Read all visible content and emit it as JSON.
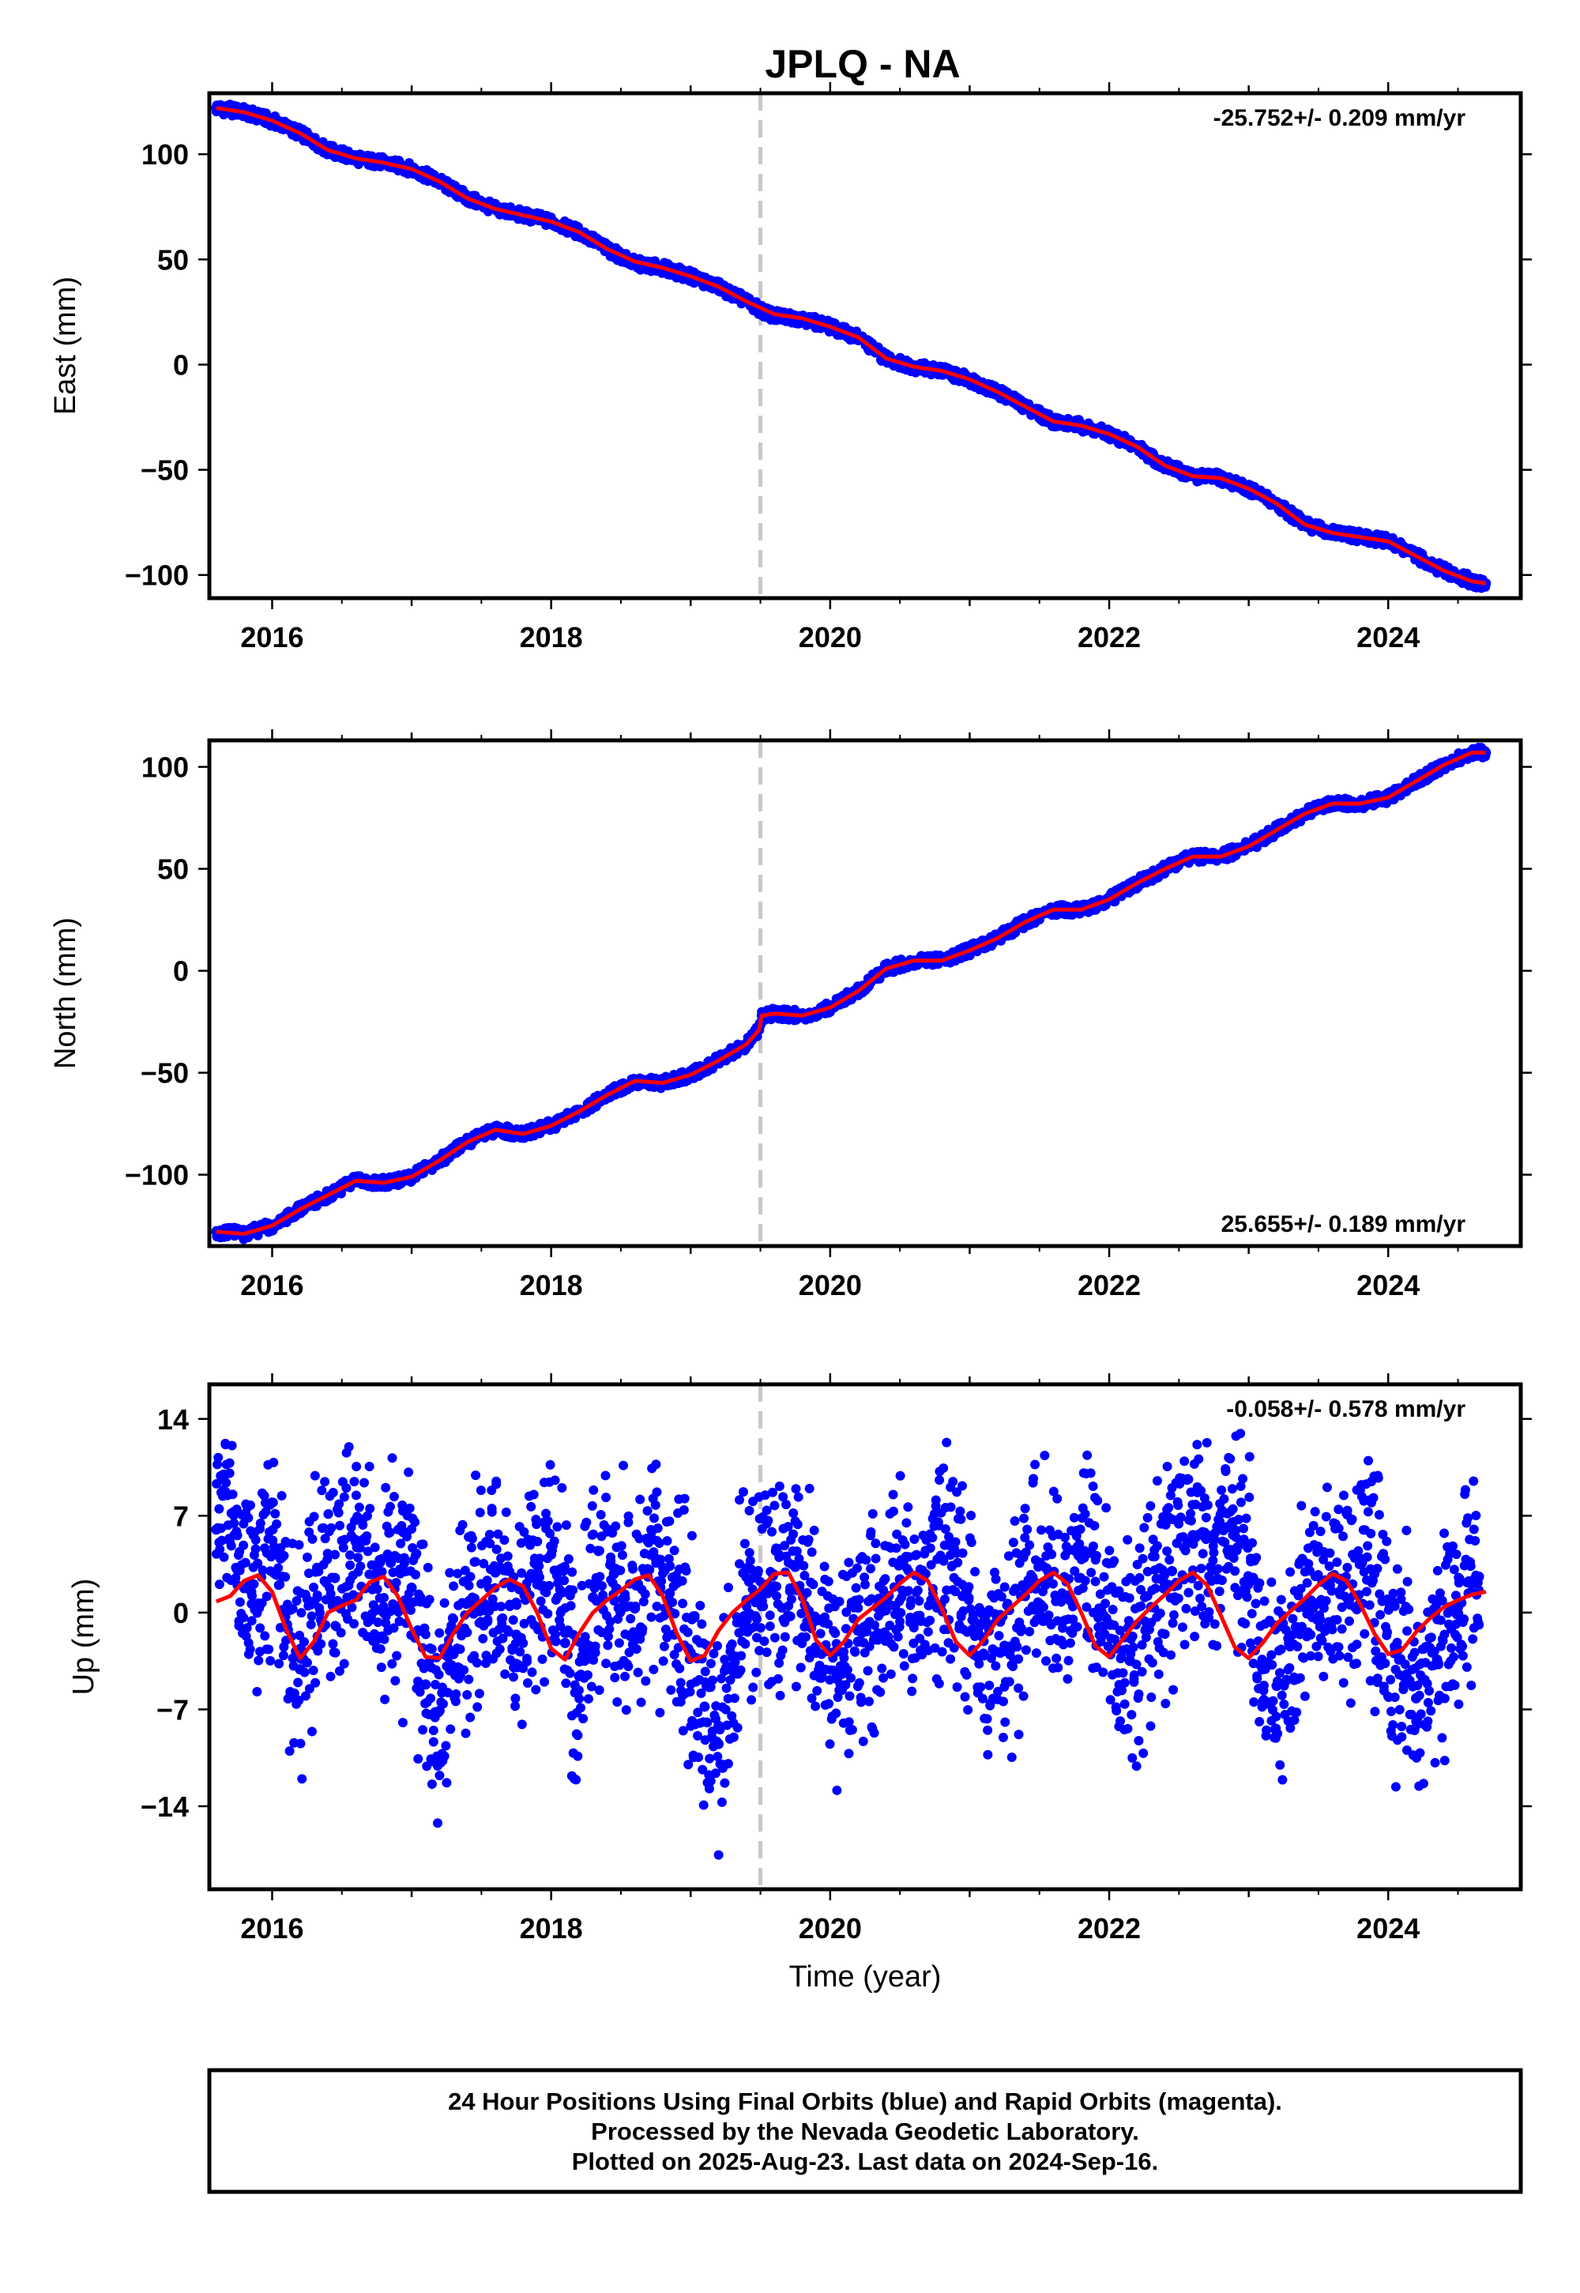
{
  "title": "JPLQ - NA",
  "footer": {
    "line1": "24 Hour Positions Using Final Orbits (blue) and Rapid Orbits (magenta).",
    "line2": "Processed by the Nevada Geodetic Laboratory.",
    "line3": "Plotted on 2025-Aug-23. Last data on 2024-Sep-16."
  },
  "colors": {
    "data": "#0000ff",
    "model": "#ff0000",
    "event_line": "#c8c8c8",
    "frame": "#000000"
  },
  "chart_data": [
    {
      "type": "scatter",
      "ylabel": "East (mm)",
      "xlabel": "",
      "xlim": [
        2015.55,
        2024.95
      ],
      "ylim": [
        -111,
        129
      ],
      "xticks": [
        2016,
        2018,
        2020,
        2022,
        2024
      ],
      "xtick_labels": [
        "2016",
        "2018",
        "2020",
        "2022",
        "2024"
      ],
      "yticks": [
        -100,
        -50,
        0,
        50,
        100
      ],
      "ytick_labels": [
        "−100",
        "−50",
        "0",
        "50",
        "100"
      ],
      "rate_text": "-25.752+/- 0.209 mm/yr",
      "rate_position": "top-right",
      "event_line_x": 2019.5,
      "grid": false,
      "series": [
        {
          "role": "data",
          "x": [
            2015.6,
            2015.7,
            2015.8,
            2016.0,
            2016.2,
            2016.4,
            2016.6,
            2016.8,
            2017.0,
            2017.2,
            2017.4,
            2017.6,
            2017.8,
            2018.0,
            2018.2,
            2018.4,
            2018.6,
            2018.8,
            2019.0,
            2019.2,
            2019.4,
            2019.5,
            2019.6,
            2019.8,
            2020.0,
            2020.2,
            2020.4,
            2020.6,
            2020.8,
            2021.0,
            2021.2,
            2021.4,
            2021.6,
            2021.8,
            2022.0,
            2022.2,
            2022.4,
            2022.6,
            2022.8,
            2023.0,
            2023.2,
            2023.4,
            2023.6,
            2023.8,
            2024.0,
            2024.2,
            2024.4,
            2024.6,
            2024.7
          ],
          "y": [
            122,
            121,
            120,
            116,
            110,
            102,
            98,
            96,
            93,
            87,
            79,
            74,
            71,
            68,
            63,
            55,
            48,
            46,
            42,
            37,
            30,
            26,
            23,
            22,
            18,
            13,
            3,
            -1,
            -3,
            -7,
            -13,
            -20,
            -27,
            -29,
            -33,
            -39,
            -48,
            -53,
            -54,
            -59,
            -66,
            -76,
            -80,
            -82,
            -84,
            -91,
            -98,
            -103,
            -104
          ]
        },
        {
          "role": "model",
          "x": [
            2015.6,
            2015.8,
            2016.0,
            2016.2,
            2016.4,
            2016.6,
            2016.8,
            2017.0,
            2017.2,
            2017.4,
            2017.6,
            2017.8,
            2018.0,
            2018.2,
            2018.4,
            2018.6,
            2018.8,
            2019.0,
            2019.2,
            2019.4,
            2019.6,
            2019.8,
            2020.0,
            2020.2,
            2020.4,
            2020.6,
            2020.8,
            2021.0,
            2021.2,
            2021.4,
            2021.6,
            2021.8,
            2022.0,
            2022.2,
            2022.4,
            2022.6,
            2022.8,
            2023.0,
            2023.2,
            2023.4,
            2023.6,
            2023.8,
            2024.0,
            2024.2,
            2024.4,
            2024.6,
            2024.7
          ],
          "y": [
            122,
            120,
            116,
            110,
            102,
            98,
            96,
            93,
            87,
            79,
            74,
            71,
            68,
            63,
            55,
            49,
            46,
            42,
            37,
            30,
            24,
            22,
            18,
            13,
            3,
            -1,
            -3,
            -7,
            -13,
            -20,
            -27,
            -29,
            -33,
            -39,
            -48,
            -53,
            -54,
            -59,
            -66,
            -76,
            -80,
            -82,
            -84,
            -91,
            -98,
            -103,
            -104
          ]
        }
      ]
    },
    {
      "type": "scatter",
      "ylabel": "North (mm)",
      "xlabel": "",
      "xlim": [
        2015.55,
        2024.95
      ],
      "ylim": [
        -135,
        113
      ],
      "xticks": [
        2016,
        2018,
        2020,
        2022,
        2024
      ],
      "xtick_labels": [
        "2016",
        "2018",
        "2020",
        "2022",
        "2024"
      ],
      "yticks": [
        -100,
        -50,
        0,
        50,
        100
      ],
      "ytick_labels": [
        "−100",
        "−50",
        "0",
        "50",
        "100"
      ],
      "rate_text": "25.655+/- 0.189 mm/yr",
      "rate_position": "bottom-right",
      "event_line_x": 2019.5,
      "grid": false,
      "series": [
        {
          "role": "data",
          "x": [
            2015.6,
            2015.8,
            2016.0,
            2016.2,
            2016.4,
            2016.6,
            2016.8,
            2017.0,
            2017.2,
            2017.4,
            2017.6,
            2017.8,
            2018.0,
            2018.2,
            2018.4,
            2018.6,
            2018.8,
            2019.0,
            2019.2,
            2019.4,
            2019.49,
            2019.51,
            2019.6,
            2019.8,
            2020.0,
            2020.2,
            2020.4,
            2020.6,
            2020.8,
            2021.0,
            2021.2,
            2021.4,
            2021.6,
            2021.8,
            2022.0,
            2022.2,
            2022.4,
            2022.6,
            2022.8,
            2023.0,
            2023.2,
            2023.4,
            2023.6,
            2023.8,
            2024.0,
            2024.2,
            2024.4,
            2024.6,
            2024.7
          ],
          "y": [
            -128,
            -129,
            -125,
            -117,
            -110,
            -103,
            -104,
            -101,
            -93,
            -84,
            -78,
            -80,
            -76,
            -69,
            -61,
            -54,
            -55,
            -51,
            -44,
            -36,
            -29,
            -22,
            -21,
            -22,
            -18,
            -10,
            1,
            5,
            5,
            10,
            16,
            24,
            30,
            30,
            35,
            43,
            50,
            56,
            56,
            61,
            69,
            77,
            82,
            82,
            85,
            93,
            101,
            107,
            107
          ]
        },
        {
          "role": "model",
          "x": [
            2015.6,
            2015.8,
            2016.0,
            2016.2,
            2016.4,
            2016.6,
            2016.8,
            2017.0,
            2017.2,
            2017.4,
            2017.6,
            2017.8,
            2018.0,
            2018.2,
            2018.4,
            2018.6,
            2018.8,
            2019.0,
            2019.2,
            2019.4,
            2019.49,
            2019.51,
            2019.6,
            2019.8,
            2020.0,
            2020.2,
            2020.4,
            2020.6,
            2020.8,
            2021.0,
            2021.2,
            2021.4,
            2021.6,
            2021.8,
            2022.0,
            2022.2,
            2022.4,
            2022.6,
            2022.8,
            2023.0,
            2023.2,
            2023.4,
            2023.6,
            2023.8,
            2024.0,
            2024.2,
            2024.4,
            2024.6,
            2024.7
          ],
          "y": [
            -128,
            -129,
            -125,
            -117,
            -110,
            -103,
            -104,
            -101,
            -93,
            -84,
            -78,
            -80,
            -76,
            -69,
            -61,
            -54,
            -55,
            -51,
            -44,
            -36,
            -29,
            -22,
            -21,
            -22,
            -18,
            -10,
            1,
            5,
            5,
            10,
            16,
            24,
            30,
            30,
            35,
            43,
            50,
            56,
            56,
            61,
            69,
            77,
            82,
            82,
            85,
            93,
            101,
            107,
            107
          ]
        }
      ]
    },
    {
      "type": "scatter",
      "ylabel": "Up (mm)",
      "xlabel": "Time (year)",
      "xlim": [
        2015.55,
        2024.95
      ],
      "ylim": [
        -20,
        16.5
      ],
      "xticks": [
        2016,
        2018,
        2020,
        2022,
        2024
      ],
      "xtick_labels": [
        "2016",
        "2018",
        "2020",
        "2022",
        "2024"
      ],
      "yticks": [
        -14,
        -7,
        0,
        7,
        14
      ],
      "ytick_labels": [
        "−14",
        "−7",
        "0",
        "7",
        "14"
      ],
      "rate_text": "-0.058+/- 0.578 mm/yr",
      "rate_position": "top-right",
      "event_line_x": 2019.5,
      "grid": false,
      "series": [
        {
          "role": "data",
          "x": [
            2015.6,
            2015.68,
            2015.75,
            2015.85,
            2016.0,
            2016.1,
            2016.2,
            2016.3,
            2016.45,
            2016.6,
            2016.75,
            2016.85,
            2017.0,
            2017.1,
            2017.2,
            2017.3,
            2017.45,
            2017.6,
            2017.75,
            2017.9,
            2018.0,
            2018.1,
            2018.2,
            2018.3,
            2018.45,
            2018.6,
            2018.75,
            2018.85,
            2019.0,
            2019.1,
            2019.2,
            2019.3,
            2019.4,
            2019.6,
            2019.75,
            2019.9,
            2020.05,
            2020.2,
            2020.35,
            2020.5,
            2020.65,
            2020.8,
            2020.95,
            2021.1,
            2021.25,
            2021.4,
            2021.55,
            2021.7,
            2021.85,
            2022.0,
            2022.15,
            2022.3,
            2022.45,
            2022.6,
            2022.75,
            2022.85,
            2023.0,
            2023.1,
            2023.2,
            2023.35,
            2023.5,
            2023.65,
            2023.8,
            2023.9,
            2024.05,
            2024.2,
            2024.35,
            2024.5,
            2024.65
          ],
          "y": [
            6.0,
            8.5,
            3.1,
            1.5,
            4.2,
            -1.0,
            -4.1,
            0.8,
            2.5,
            5.1,
            0.2,
            3.6,
            1.8,
            -5.2,
            -7.1,
            -3.0,
            0.5,
            2.9,
            -1.6,
            3.4,
            4.2,
            -2.2,
            -4.6,
            1.1,
            2.8,
            0.3,
            3.9,
            1.4,
            -2.9,
            -6.8,
            -9.5,
            -4.2,
            0.9,
            1.9,
            3.3,
            -0.4,
            -4.8,
            -2.1,
            1.0,
            2.4,
            -0.6,
            3.9,
            1.2,
            -3.1,
            -2.4,
            1.6,
            3.2,
            1.1,
            4.3,
            -0.8,
            -3.5,
            0.4,
            3.0,
            5.6,
            3.1,
            6.2,
            2.1,
            -4.1,
            -5.3,
            -1.2,
            0.7,
            1.5,
            3.9,
            2.8,
            -2.6,
            -6.2,
            -3.4,
            0.4,
            2.6
          ]
        },
        {
          "role": "model",
          "x": [
            2015.6,
            2015.7,
            2015.8,
            2015.9,
            2016.0,
            2016.1,
            2016.2,
            2016.3,
            2016.4,
            2016.5,
            2016.6,
            2016.7,
            2016.8,
            2016.9,
            2017.0,
            2017.1,
            2017.2,
            2017.3,
            2017.4,
            2017.5,
            2017.6,
            2017.7,
            2017.8,
            2017.9,
            2018.0,
            2018.1,
            2018.2,
            2018.3,
            2018.4,
            2018.5,
            2018.6,
            2018.7,
            2018.8,
            2018.9,
            2019.0,
            2019.1,
            2019.2,
            2019.3,
            2019.4,
            2019.5,
            2019.6,
            2019.7,
            2019.8,
            2019.9,
            2020.0,
            2020.1,
            2020.2,
            2020.3,
            2020.4,
            2020.5,
            2020.6,
            2020.7,
            2020.8,
            2020.9,
            2021.0,
            2021.1,
            2021.2,
            2021.3,
            2021.4,
            2021.5,
            2021.6,
            2021.7,
            2021.8,
            2021.9,
            2022.0,
            2022.1,
            2022.2,
            2022.3,
            2022.4,
            2022.5,
            2022.6,
            2022.7,
            2022.8,
            2022.9,
            2023.0,
            2023.1,
            2023.2,
            2023.3,
            2023.4,
            2023.5,
            2023.6,
            2023.7,
            2023.8,
            2023.9,
            2024.0,
            2024.1,
            2024.2,
            2024.3,
            2024.4,
            2024.5,
            2024.6,
            2024.7
          ],
          "y": [
            0.8,
            1.2,
            2.3,
            2.7,
            1.5,
            -1.2,
            -3.3,
            -2.1,
            0.0,
            0.5,
            0.9,
            2.2,
            2.6,
            1.2,
            -1.2,
            -3.2,
            -3.3,
            -1.5,
            0.0,
            0.9,
            1.8,
            2.4,
            1.9,
            0.0,
            -2.6,
            -3.4,
            -1.5,
            0.0,
            0.9,
            1.6,
            2.4,
            2.7,
            1.2,
            -1.5,
            -3.5,
            -3.1,
            -1.3,
            0.0,
            0.9,
            1.7,
            2.8,
            2.9,
            1.0,
            -2.0,
            -3.1,
            -2.1,
            -0.5,
            0.3,
            1.1,
            2.1,
            2.9,
            2.3,
            0.3,
            -2.1,
            -3.1,
            -2.0,
            -0.5,
            0.4,
            1.3,
            2.3,
            2.9,
            2.1,
            0.0,
            -2.4,
            -3.2,
            -1.9,
            -0.6,
            0.4,
            1.3,
            2.3,
            2.9,
            2.0,
            -0.2,
            -2.5,
            -3.3,
            -2.2,
            -0.8,
            0.1,
            1.0,
            2.0,
            2.8,
            2.3,
            0.6,
            -1.5,
            -3.0,
            -2.7,
            -1.4,
            -0.4,
            0.4,
            0.9,
            1.3,
            1.5
          ]
        }
      ]
    }
  ]
}
